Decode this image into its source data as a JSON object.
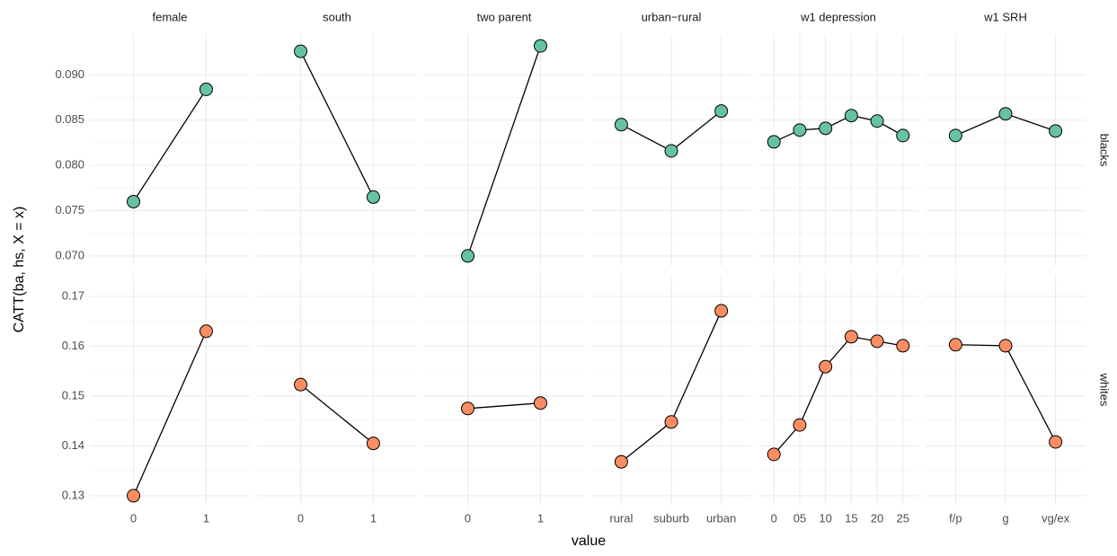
{
  "chart_data": {
    "type": "line",
    "y_label": "CATT(ba, hs, X = x)",
    "x_label": "value",
    "rows": [
      {
        "label": "blacks",
        "color": "#66c2a5",
        "ylim": [
          0.0689,
          0.0945
        ],
        "yticks": [
          {
            "value": 0.07,
            "label": "0.070"
          },
          {
            "value": 0.075,
            "label": "0.075"
          },
          {
            "value": 0.08,
            "label": "0.080"
          },
          {
            "value": 0.085,
            "label": "0.085"
          },
          {
            "value": 0.09,
            "label": "0.090"
          }
        ]
      },
      {
        "label": "whites",
        "color": "#fc8d62",
        "ylim": [
          0.128,
          0.1745
        ],
        "yticks": [
          0.13,
          0.14,
          0.15,
          0.16,
          0.17
        ]
      }
    ],
    "panels": [
      {
        "title": "female",
        "categories": [
          "0",
          "1"
        ],
        "values": [
          [
            0.076,
            0.0884
          ],
          [
            0.13,
            0.163
          ]
        ]
      },
      {
        "title": "south",
        "categories": [
          "0",
          "1"
        ],
        "values": [
          [
            0.0926,
            0.0765
          ],
          [
            0.1523,
            0.1405
          ]
        ]
      },
      {
        "title": "two parent",
        "categories": [
          "0",
          "1"
        ],
        "values": [
          [
            0.07,
            0.0932
          ],
          [
            0.1475,
            0.1486
          ]
        ]
      },
      {
        "title": "urban−rural",
        "categories": [
          "rural",
          "suburb",
          "urban"
        ],
        "values": [
          [
            0.0845,
            0.0816,
            0.086
          ],
          [
            0.1368,
            0.1448,
            0.1671
          ]
        ]
      },
      {
        "title": "w1 depression",
        "categories": [
          "0",
          "05",
          "10",
          "15",
          "20",
          "25"
        ],
        "values": [
          [
            0.0826,
            0.0839,
            0.0841,
            0.0855,
            0.0849,
            0.0833
          ],
          [
            0.1383,
            0.1442,
            0.1559,
            0.1619,
            0.161,
            0.1601
          ]
        ]
      },
      {
        "title": "w1 SRH",
        "categories": [
          "f/p",
          "g",
          "vg/ex"
        ],
        "values": [
          [
            0.0833,
            0.0857,
            0.0838
          ],
          [
            0.1603,
            0.1601,
            0.1408
          ]
        ]
      }
    ]
  }
}
